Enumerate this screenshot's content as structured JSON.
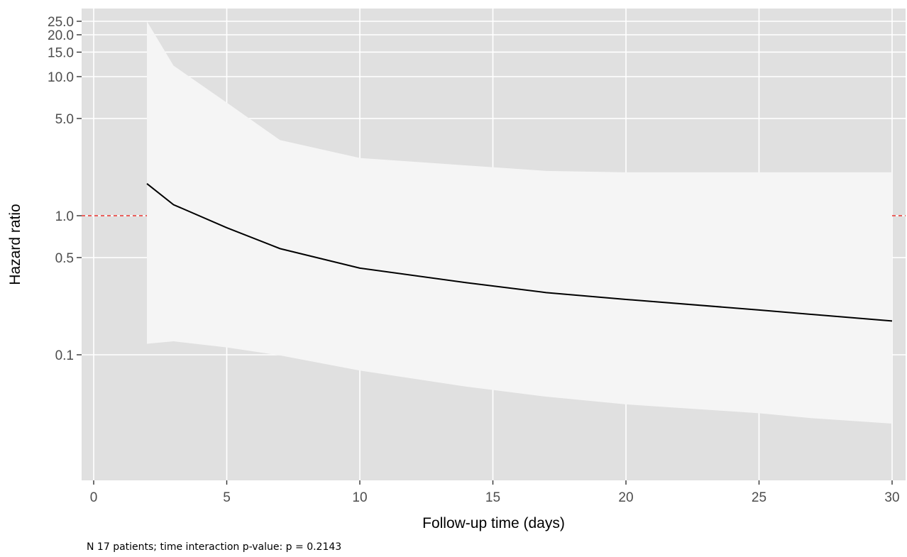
{
  "chart_data": {
    "type": "line",
    "title": "",
    "xlabel": "Follow-up time (days)",
    "ylabel": "Hazard ratio",
    "x_scale": "linear",
    "y_scale": "log",
    "xlim": [
      -0.4,
      30.5
    ],
    "ylim": [
      0.03,
      28
    ],
    "x_ticks": [
      0,
      5,
      10,
      15,
      20,
      25,
      30
    ],
    "x_tick_labels": [
      "0",
      "5",
      "10",
      "15",
      "20",
      "25",
      "30"
    ],
    "y_ticks": [
      0.1,
      0.5,
      1,
      5,
      10,
      15,
      20,
      25
    ],
    "y_tick_labels": [
      "0.1",
      "0.5",
      "1.0",
      "5.0",
      "10.0",
      "15.0",
      "20.0",
      "25.0"
    ],
    "grid": true,
    "series": [
      {
        "x": [
          2,
          3,
          5,
          7,
          10,
          14,
          17,
          20,
          25,
          27,
          30
        ],
        "y": [
          1.7,
          1.2,
          0.82,
          0.58,
          0.42,
          0.33,
          0.28,
          0.25,
          0.21,
          0.195,
          0.175
        ],
        "color": "#000000"
      }
    ],
    "ci_band": {
      "x": [
        2,
        3,
        5,
        7,
        10,
        14,
        17,
        20,
        25,
        27,
        30
      ],
      "lower": [
        0.12,
        0.125,
        0.113,
        0.099,
        0.077,
        0.059,
        0.05,
        0.044,
        0.038,
        0.035,
        0.032
      ],
      "upper": [
        25,
        12,
        6.5,
        3.5,
        2.6,
        2.3,
        2.1,
        2.05,
        2.05,
        2.05,
        2.05
      ],
      "color": "#f5f5f5"
    },
    "reference_line": {
      "y": 1.0,
      "color": "#e8302a",
      "style": "dashed"
    }
  },
  "caption": "N 17 patients; time interaction p-value: p = 0.2143",
  "colors": {
    "panel": "#e0e0e0",
    "grid": "#ffffff",
    "band": "#f5f5f5",
    "line": "#000000",
    "reference": "#e8302a"
  }
}
